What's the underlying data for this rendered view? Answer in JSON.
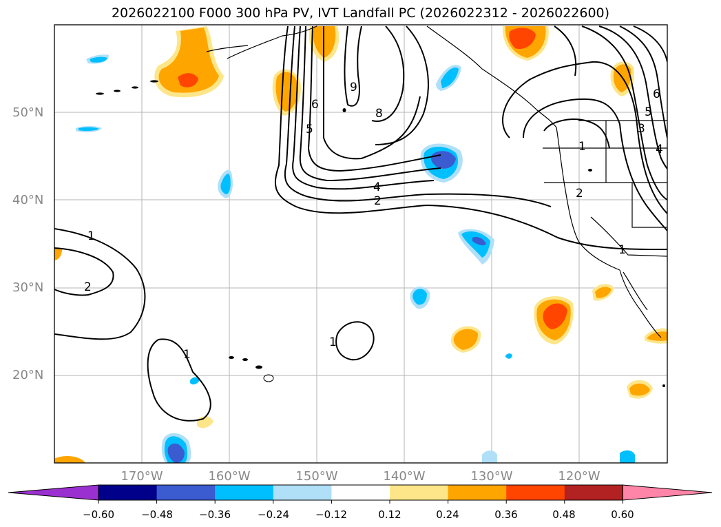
{
  "title": "2026022100 F000 300 hPa PV, IVT Landfall PC (2026022312 - 2026022600)",
  "map": {
    "projection": "cylindrical",
    "lat_labels": [
      "50°N",
      "40°N",
      "30°N",
      "20°N"
    ],
    "lon_labels": [
      "170°W",
      "160°W",
      "150°W",
      "140°W",
      "130°W",
      "120°W"
    ],
    "grid": true
  },
  "contour_labels": [
    "1",
    "2",
    "1",
    "1",
    "4",
    "2",
    "5",
    "6",
    "8",
    "9",
    "1",
    "2",
    "3",
    "4",
    "5",
    "6",
    "1"
  ],
  "colorbar": {
    "ticks": [
      "−0.60",
      "−0.48",
      "−0.36",
      "−0.24",
      "−0.12",
      "0.12",
      "0.24",
      "0.36",
      "0.48",
      "0.60"
    ],
    "colors": [
      "#9b30d0",
      "#00008b",
      "#3b5bd0",
      "#00bfff",
      "#b0e0f8",
      "#ffffff",
      "#fde68a",
      "#ffa500",
      "#ff4500",
      "#b22222",
      "#ff85a8"
    ]
  }
}
